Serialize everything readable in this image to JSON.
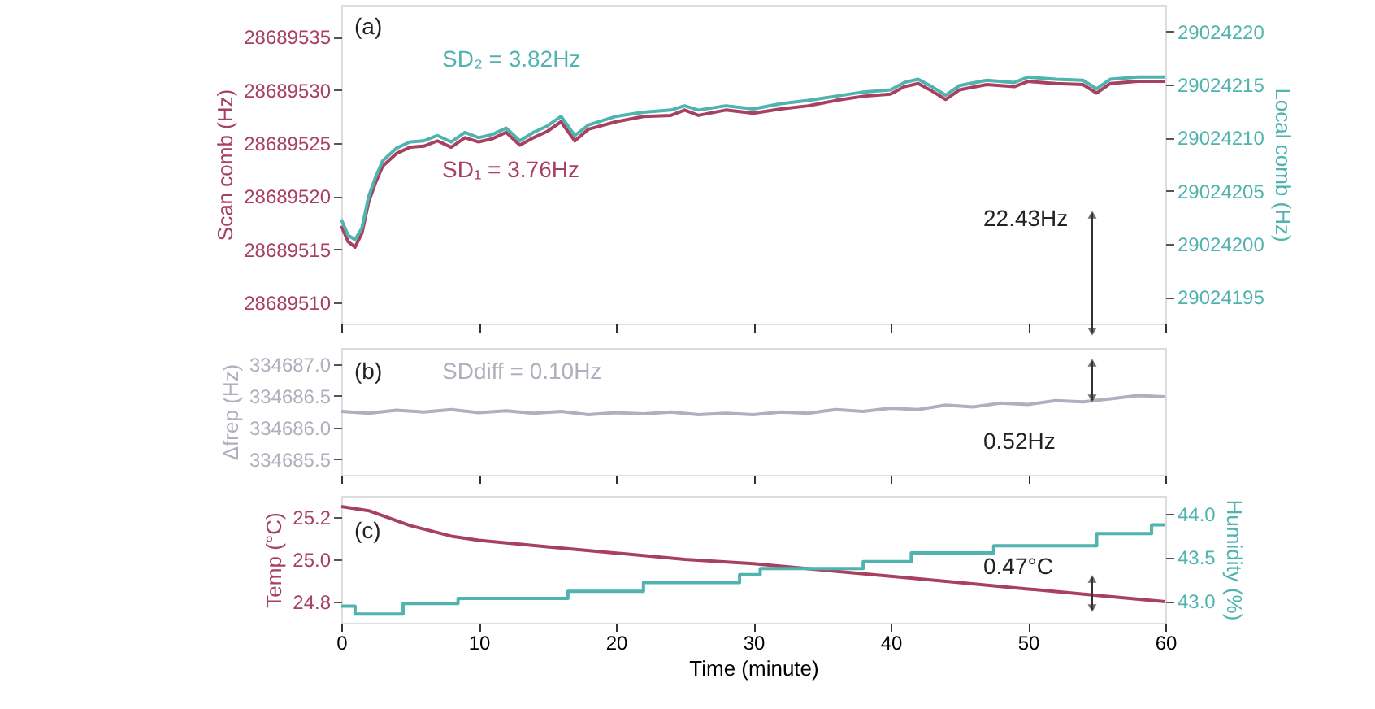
{
  "chart_data": [
    {
      "type": "line",
      "ylabel": "Scan comb (Hz)",
      "y2label": "Local comb (Hz)",
      "xlim": [
        0,
        60
      ],
      "xticks": [
        0,
        10,
        20,
        30,
        40,
        50,
        60
      ],
      "ylim": [
        28689508,
        28689538
      ],
      "yticks": [
        28689510,
        28689515,
        28689520,
        28689525,
        28689530,
        28689535
      ],
      "y2lim": [
        29024192.5,
        29024222.5
      ],
      "y2ticks": [
        29024195,
        29024200,
        29024205,
        29024210,
        29024215,
        29024220
      ],
      "tick_labels": "y",
      "grid": false,
      "legend": false,
      "marker": "none",
      "line_style": "solid",
      "x": [
        0,
        0.5,
        1,
        1.5,
        2,
        2.5,
        3,
        4,
        5,
        6,
        7,
        8,
        9,
        10,
        11,
        12,
        13,
        14,
        15,
        16,
        17,
        18,
        20,
        22,
        24,
        25,
        26,
        28,
        30,
        32,
        34,
        36,
        38,
        40,
        41,
        42,
        43,
        44,
        45,
        47,
        49,
        50,
        52,
        54,
        55,
        56,
        58,
        60
      ],
      "series": [
        {
          "color": "#a8405f",
          "values": [
            28689517.2,
            28689515.7,
            28689515.2,
            28689516.5,
            28689519.5,
            28689521.3,
            28689522.8,
            28689524.0,
            28689524.6,
            28689524.7,
            28689525.2,
            28689524.6,
            28689525.5,
            28689525.1,
            28689525.4,
            28689526.0,
            28689524.8,
            28689525.5,
            28689526.1,
            28689527.0,
            28689525.2,
            28689526.3,
            28689527.0,
            28689527.5,
            28689527.6,
            28689528.1,
            28689527.6,
            28689528.1,
            28689527.8,
            28689528.2,
            28689528.5,
            28689529.0,
            28689529.4,
            28689529.6,
            28689530.3,
            28689530.6,
            28689529.9,
            28689529.1,
            28689530.0,
            28689530.5,
            28689530.3,
            28689530.8,
            28689530.6,
            28689530.5,
            28689529.7,
            28689530.6,
            28689530.8,
            28689530.8
          ]
        },
        {
          "color": "#4fb3b0",
          "axis": "y2",
          "values": [
            29024202.3,
            29024200.8,
            29024200.4,
            29024201.5,
            29024204.5,
            29024206.3,
            29024207.8,
            29024209.0,
            29024209.6,
            29024209.7,
            29024210.2,
            29024209.6,
            29024210.5,
            29024210.0,
            29024210.3,
            29024210.9,
            29024209.7,
            29024210.5,
            29024211.1,
            29024212.0,
            29024210.2,
            29024211.2,
            29024212.0,
            29024212.4,
            29024212.6,
            29024213.0,
            29024212.6,
            29024213.0,
            29024212.7,
            29024213.2,
            29024213.5,
            29024213.9,
            29024214.3,
            29024214.5,
            29024215.2,
            29024215.5,
            29024214.8,
            29024214.0,
            29024214.9,
            29024215.4,
            29024215.2,
            29024215.7,
            29024215.5,
            29024215.4,
            29024214.6,
            29024215.5,
            29024215.7,
            29024215.7
          ]
        }
      ],
      "annotations": [
        "(a)",
        "SD₂ = 3.82Hz",
        "SD₁ = 3.76Hz",
        "22.43Hz"
      ]
    },
    {
      "type": "line",
      "ylabel": "Δfrep (Hz)",
      "xlim": [
        0,
        60
      ],
      "xticks": [
        0,
        10,
        20,
        30,
        40,
        50,
        60
      ],
      "ylim": [
        334685.25,
        334687.25
      ],
      "yticks": [
        {
          "value": 334685.5,
          "label": "334685.5"
        },
        {
          "value": 334686,
          "label": "334686.0"
        },
        {
          "value": 334686.5,
          "label": "334686.5"
        },
        {
          "value": 334687,
          "label": "334687.0"
        }
      ],
      "tick_labels": "y",
      "grid": false,
      "legend": false,
      "marker": "none",
      "line_style": "solid",
      "x": [
        0,
        2,
        4,
        6,
        8,
        10,
        12,
        14,
        16,
        18,
        20,
        22,
        24,
        26,
        28,
        30,
        32,
        34,
        36,
        38,
        40,
        42,
        44,
        46,
        48,
        50,
        52,
        54,
        56,
        58,
        60
      ],
      "series": [
        {
          "color": "#b4adbd",
          "values": [
            334686.25,
            334686.22,
            334686.27,
            334686.24,
            334686.28,
            334686.23,
            334686.26,
            334686.22,
            334686.25,
            334686.2,
            334686.23,
            334686.21,
            334686.24,
            334686.2,
            334686.22,
            334686.2,
            334686.24,
            334686.22,
            334686.28,
            334686.25,
            334686.3,
            334686.28,
            334686.35,
            334686.32,
            334686.38,
            334686.36,
            334686.42,
            334686.4,
            334686.45,
            334686.5,
            334686.48
          ]
        }
      ],
      "annotations": [
        "(b)",
        "SDdiff = 0.10Hz",
        "0.52Hz"
      ]
    },
    {
      "type": "line",
      "xlabel": "Time (minute)",
      "ylabel": "Temp (°C)",
      "y2label": "Humidity (%)",
      "xlim": [
        0,
        60
      ],
      "xticks": [
        0,
        10,
        20,
        30,
        40,
        50,
        60
      ],
      "ylim": [
        24.7,
        25.3
      ],
      "yticks": [
        24.8,
        {
          "value": 25,
          "label": "25.0"
        },
        25.2
      ],
      "y2lim": [
        42.75,
        44.2
      ],
      "y2ticks": [
        {
          "value": 43,
          "label": "43.0"
        },
        43.5,
        {
          "value": 44,
          "label": "44.0"
        }
      ],
      "grid": false,
      "legend": false,
      "marker": "none",
      "line_style": "solid",
      "series": [
        {
          "color": "#a8405f",
          "x": [
            0,
            2,
            5,
            8,
            10,
            15,
            20,
            25,
            30,
            35,
            40,
            45,
            50,
            55,
            60
          ],
          "values": [
            25.25,
            25.23,
            25.16,
            25.11,
            25.09,
            25.06,
            25.03,
            25.0,
            24.98,
            24.95,
            24.92,
            24.89,
            24.86,
            24.83,
            24.8
          ]
        },
        {
          "color": "#4fb3b0",
          "axis": "y2",
          "type": "step",
          "x": [
            0,
            1,
            4.5,
            8.5,
            16.5,
            22,
            29,
            30.5,
            38,
            41.5,
            47.5,
            55,
            59,
            60
          ],
          "values": [
            42.94,
            42.85,
            42.97,
            43.03,
            43.11,
            43.21,
            43.3,
            43.37,
            43.45,
            43.55,
            43.63,
            43.77,
            43.87,
            43.87
          ]
        }
      ],
      "annotations": [
        "(c)",
        "0.47°C"
      ]
    }
  ]
}
